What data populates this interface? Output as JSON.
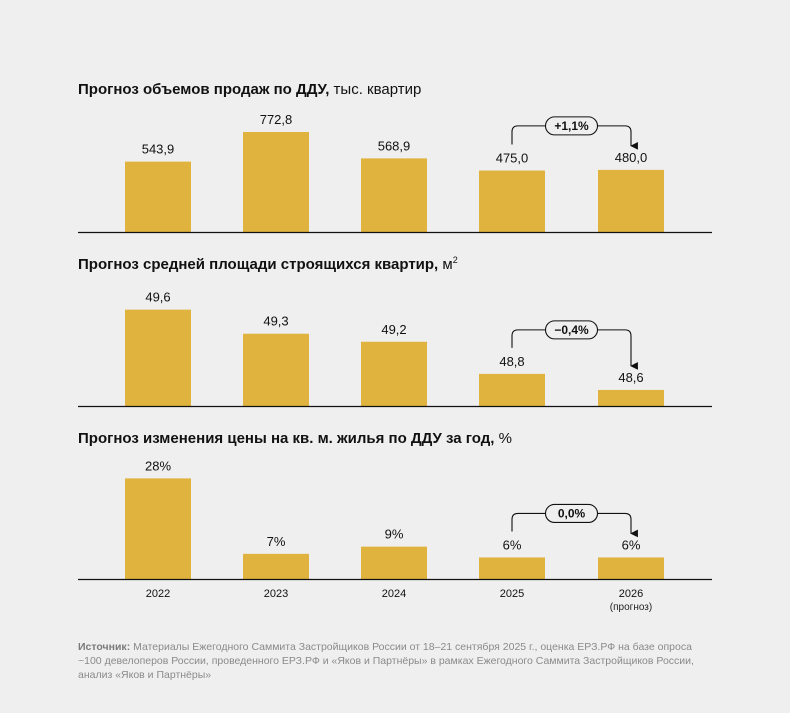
{
  "colors": {
    "bar": "#e0b33e",
    "axis": "#111111",
    "background": "#f0efef"
  },
  "categories": [
    "2022",
    "2023",
    "2024",
    "2025",
    "2026"
  ],
  "category_notes": [
    "",
    "",
    "",
    "",
    "(прогноз)"
  ],
  "chart_data": [
    {
      "type": "bar",
      "title_bold": "Прогноз объемов продаж по ДДУ,",
      "title_rest": " тыс. квартир",
      "title_sup": "",
      "categories": [
        "2022",
        "2023",
        "2024",
        "2025",
        "2026"
      ],
      "values": [
        543.9,
        772.8,
        568.9,
        475.0,
        480.0
      ],
      "labels": [
        "543,9",
        "772,8",
        "568,9",
        "475,0",
        "480,0"
      ],
      "ylim": [
        0,
        850
      ],
      "change_label": "+1,1%"
    },
    {
      "type": "bar",
      "title_bold": "Прогноз средней площади строящихся квартир,",
      "title_rest": " м",
      "title_sup": "2",
      "categories": [
        "2022",
        "2023",
        "2024",
        "2025",
        "2026"
      ],
      "values": [
        49.6,
        49.3,
        49.2,
        48.8,
        48.6
      ],
      "labels": [
        "49,6",
        "49,3",
        "49,2",
        "48,8",
        "48,6"
      ],
      "ylim": [
        48.4,
        49.72
      ],
      "change_label": "−0,4%"
    },
    {
      "type": "bar",
      "title_bold": "Прогноз изменения цены на кв. м. жилья по ДДУ за год,",
      "title_rest": " %",
      "title_sup": "",
      "categories": [
        "2022",
        "2023",
        "2024",
        "2025",
        "2026"
      ],
      "values": [
        28,
        7,
        9,
        6,
        6
      ],
      "labels": [
        "28%",
        "7%",
        "9%",
        "6%",
        "6%"
      ],
      "ylim": [
        0,
        29.5
      ],
      "change_label": "0,0%"
    }
  ],
  "source": {
    "label": "Источник:",
    "text": " Материалы Ежегодного Саммита Застройщиков России от 18–21 сентября 2025 г., оценка ЕРЗ.РФ на базе опроса ~100 девелоперов России, проведенного ЕРЗ.РФ и «Яков и Партнёры» в рамках Ежегодного Саммита Застройщиков России, анализ «Яков и Партнёры»"
  }
}
